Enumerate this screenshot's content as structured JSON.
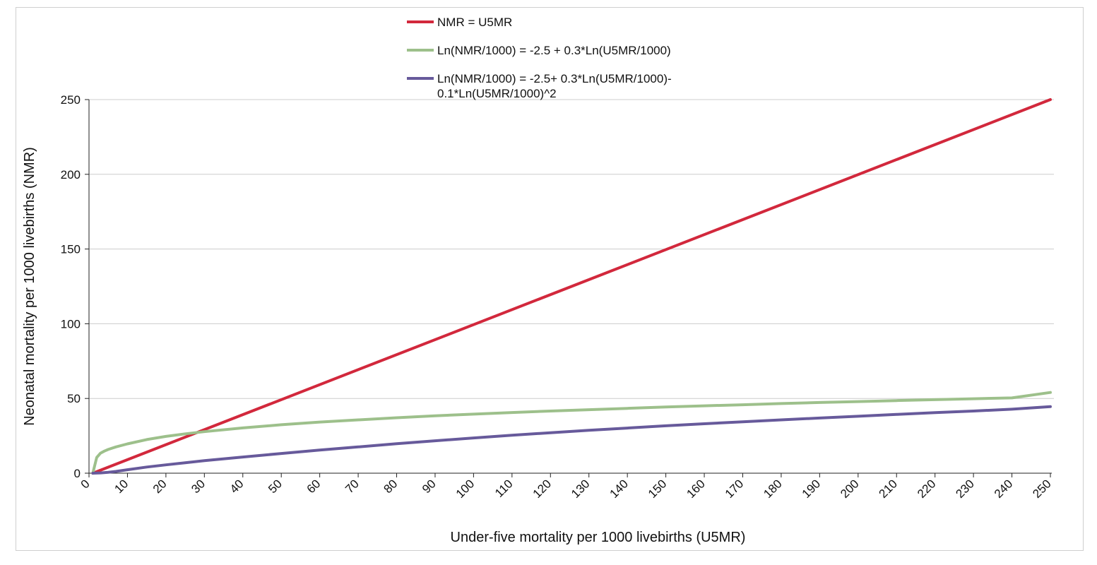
{
  "chart_data": {
    "type": "line",
    "title": "",
    "xlabel": "Under-five mortality per 1000 livebirths (U5MR)",
    "ylabel": "Neonatal mortality per 1000 livebirths (NMR)",
    "xlim": [
      0,
      250
    ],
    "ylim": [
      0,
      250
    ],
    "x_ticks": [
      0,
      10,
      20,
      30,
      40,
      50,
      60,
      70,
      80,
      90,
      100,
      110,
      120,
      130,
      140,
      150,
      160,
      170,
      180,
      190,
      200,
      210,
      220,
      230,
      240,
      250
    ],
    "y_ticks": [
      0,
      50,
      100,
      150,
      200,
      250
    ],
    "grid": "horizontal",
    "legend_position": "top",
    "series": [
      {
        "name": "NMR = U5MR",
        "color": "#d2283c",
        "x": [
          1,
          250
        ],
        "y": [
          0,
          250
        ]
      },
      {
        "name": "Ln(NMR/1000) = -2.5 + 0.3*Ln(U5MR/1000)",
        "color": "#9dc08b",
        "x": [
          1,
          2,
          3,
          4,
          5,
          7,
          10,
          15,
          20,
          25,
          30,
          40,
          50,
          60,
          70,
          80,
          90,
          100,
          110,
          120,
          130,
          140,
          150,
          160,
          170,
          180,
          190,
          200,
          210,
          220,
          230,
          240,
          250
        ],
        "y": [
          0,
          10.5,
          13.4,
          14.8,
          15.9,
          17.6,
          19.6,
          22.5,
          24.6,
          26.3,
          27.8,
          30.3,
          32.4,
          34.2,
          35.7,
          37.1,
          38.4,
          39.5,
          40.6,
          41.6,
          42.5,
          43.4,
          44.3,
          45.1,
          45.8,
          46.6,
          47.3,
          47.9,
          48.6,
          49.2,
          49.8,
          50.4,
          54.0
        ]
      },
      {
        "name": "Ln(NMR/1000) = -2.5+ 0.3*Ln(U5MR/1000)-0.1*Ln(U5MR/1000)^2",
        "color": "#675a9b",
        "x": [
          1,
          3,
          5,
          7,
          10,
          15,
          20,
          25,
          30,
          40,
          50,
          60,
          70,
          80,
          90,
          100,
          110,
          120,
          130,
          140,
          150,
          160,
          170,
          180,
          190,
          200,
          210,
          220,
          230,
          240,
          250
        ],
        "y": [
          0,
          0.2,
          0.6,
          1.2,
          2.3,
          4.1,
          5.6,
          7.0,
          8.4,
          10.8,
          13.2,
          15.5,
          17.6,
          19.7,
          21.7,
          23.6,
          25.4,
          27.1,
          28.7,
          30.2,
          31.7,
          33.1,
          34.4,
          35.7,
          36.9,
          38.1,
          39.3,
          40.5,
          41.6,
          42.8,
          44.5
        ]
      }
    ]
  }
}
